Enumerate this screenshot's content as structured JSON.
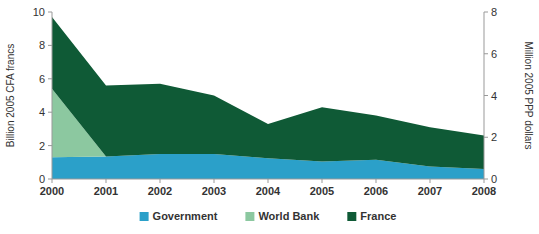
{
  "chart_data": {
    "type": "area",
    "stacked": true,
    "y_label": "Billion 2005 CFA francs",
    "y2_label": "Million 2005 PPP dollars",
    "x": [
      2000,
      2001,
      2002,
      2003,
      2004,
      2005,
      2006,
      2007,
      2008
    ],
    "xlim": [
      2000,
      2008
    ],
    "xticks": [
      2000,
      2001,
      2002,
      2003,
      2004,
      2005,
      2006,
      2007,
      2008
    ],
    "ylim": [
      0,
      10
    ],
    "yticks": [
      0,
      2,
      4,
      6,
      8,
      10
    ],
    "y2lim": [
      0,
      8
    ],
    "y2ticks": [
      0,
      2,
      4,
      6,
      8
    ],
    "legend": "bottom",
    "series": [
      {
        "name": "Government",
        "color": "#2ba0c9",
        "values": [
          1.3,
          1.35,
          1.5,
          1.5,
          1.25,
          1.05,
          1.15,
          0.75,
          0.6
        ]
      },
      {
        "name": "World Bank",
        "color": "#8cc8a0",
        "values": [
          4.1,
          0,
          0,
          0,
          0,
          0,
          0,
          0,
          0
        ]
      },
      {
        "name": "France",
        "color": "#0f5a36",
        "values": [
          4.3,
          4.25,
          4.2,
          3.5,
          2.05,
          3.25,
          2.65,
          2.35,
          2.0
        ]
      }
    ]
  }
}
